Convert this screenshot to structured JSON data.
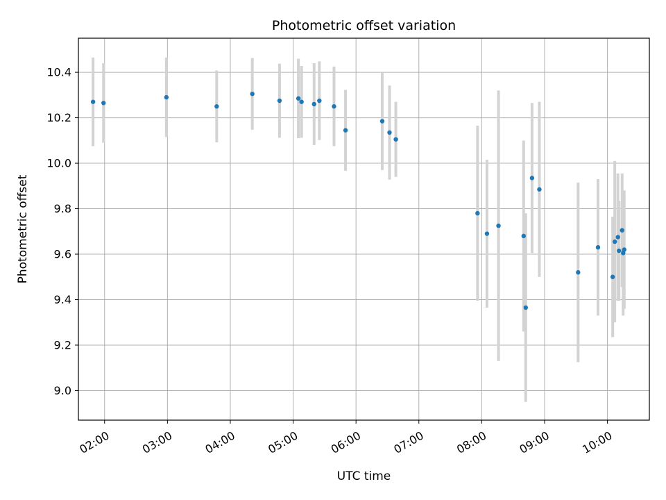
{
  "chart_data": {
    "type": "scatter",
    "title": "Photometric offset variation",
    "xlabel": "UTC time",
    "ylabel": "Photometric offset",
    "xlim": [
      "01:35",
      "10:40"
    ],
    "ylim": [
      8.87,
      10.55
    ],
    "x_ticks": [
      "02:00",
      "03:00",
      "04:00",
      "05:00",
      "06:00",
      "07:00",
      "08:00",
      "09:00",
      "10:00"
    ],
    "y_ticks": [
      "9.0",
      "9.2",
      "9.4",
      "9.6",
      "9.8",
      "10.0",
      "10.2",
      "10.4"
    ],
    "grid": true,
    "colors": {
      "points": "#1f77b4",
      "error_bars": "#d3d3d3"
    },
    "points": [
      {
        "t": "01:49",
        "y": 10.27,
        "err": 0.195
      },
      {
        "t": "01:59",
        "y": 10.265,
        "err": 0.175
      },
      {
        "t": "02:59",
        "y": 10.29,
        "err": 0.175
      },
      {
        "t": "03:47",
        "y": 10.25,
        "err": 0.158
      },
      {
        "t": "04:21",
        "y": 10.305,
        "err": 0.158
      },
      {
        "t": "04:47",
        "y": 10.275,
        "err": 0.163
      },
      {
        "t": "05:05",
        "y": 10.285,
        "err": 0.175
      },
      {
        "t": "05:08",
        "y": 10.27,
        "err": 0.158
      },
      {
        "t": "05:20",
        "y": 10.26,
        "err": 0.18
      },
      {
        "t": "05:25",
        "y": 10.275,
        "err": 0.173
      },
      {
        "t": "05:39",
        "y": 10.25,
        "err": 0.175
      },
      {
        "t": "05:50",
        "y": 10.145,
        "err": 0.178
      },
      {
        "t": "06:25",
        "y": 10.185,
        "err": 0.215
      },
      {
        "t": "06:32",
        "y": 10.135,
        "err": 0.207
      },
      {
        "t": "06:38",
        "y": 10.105,
        "err": 0.165
      },
      {
        "t": "07:56",
        "y": 9.78,
        "err": 0.385
      },
      {
        "t": "08:05",
        "y": 9.69,
        "err": 0.325
      },
      {
        "t": "08:16",
        "y": 9.725,
        "err": 0.595
      },
      {
        "t": "08:40",
        "y": 9.68,
        "err": 0.42
      },
      {
        "t": "08:42",
        "y": 9.365,
        "err": 0.415
      },
      {
        "t": "08:48",
        "y": 9.935,
        "err": 0.33
      },
      {
        "t": "08:55",
        "y": 9.885,
        "err": 0.385
      },
      {
        "t": "09:32",
        "y": 9.52,
        "err": 0.395
      },
      {
        "t": "09:51",
        "y": 9.63,
        "err": 0.3
      },
      {
        "t": "10:05",
        "y": 9.5,
        "err": 0.265
      },
      {
        "t": "10:07",
        "y": 9.655,
        "err": 0.355
      },
      {
        "t": "10:10",
        "y": 9.675,
        "err": 0.28
      },
      {
        "t": "10:11",
        "y": 9.615,
        "err": 0.22
      },
      {
        "t": "10:14",
        "y": 9.705,
        "err": 0.25
      },
      {
        "t": "10:15",
        "y": 9.605,
        "err": 0.275
      },
      {
        "t": "10:16",
        "y": 9.62,
        "err": 0.26
      }
    ]
  }
}
